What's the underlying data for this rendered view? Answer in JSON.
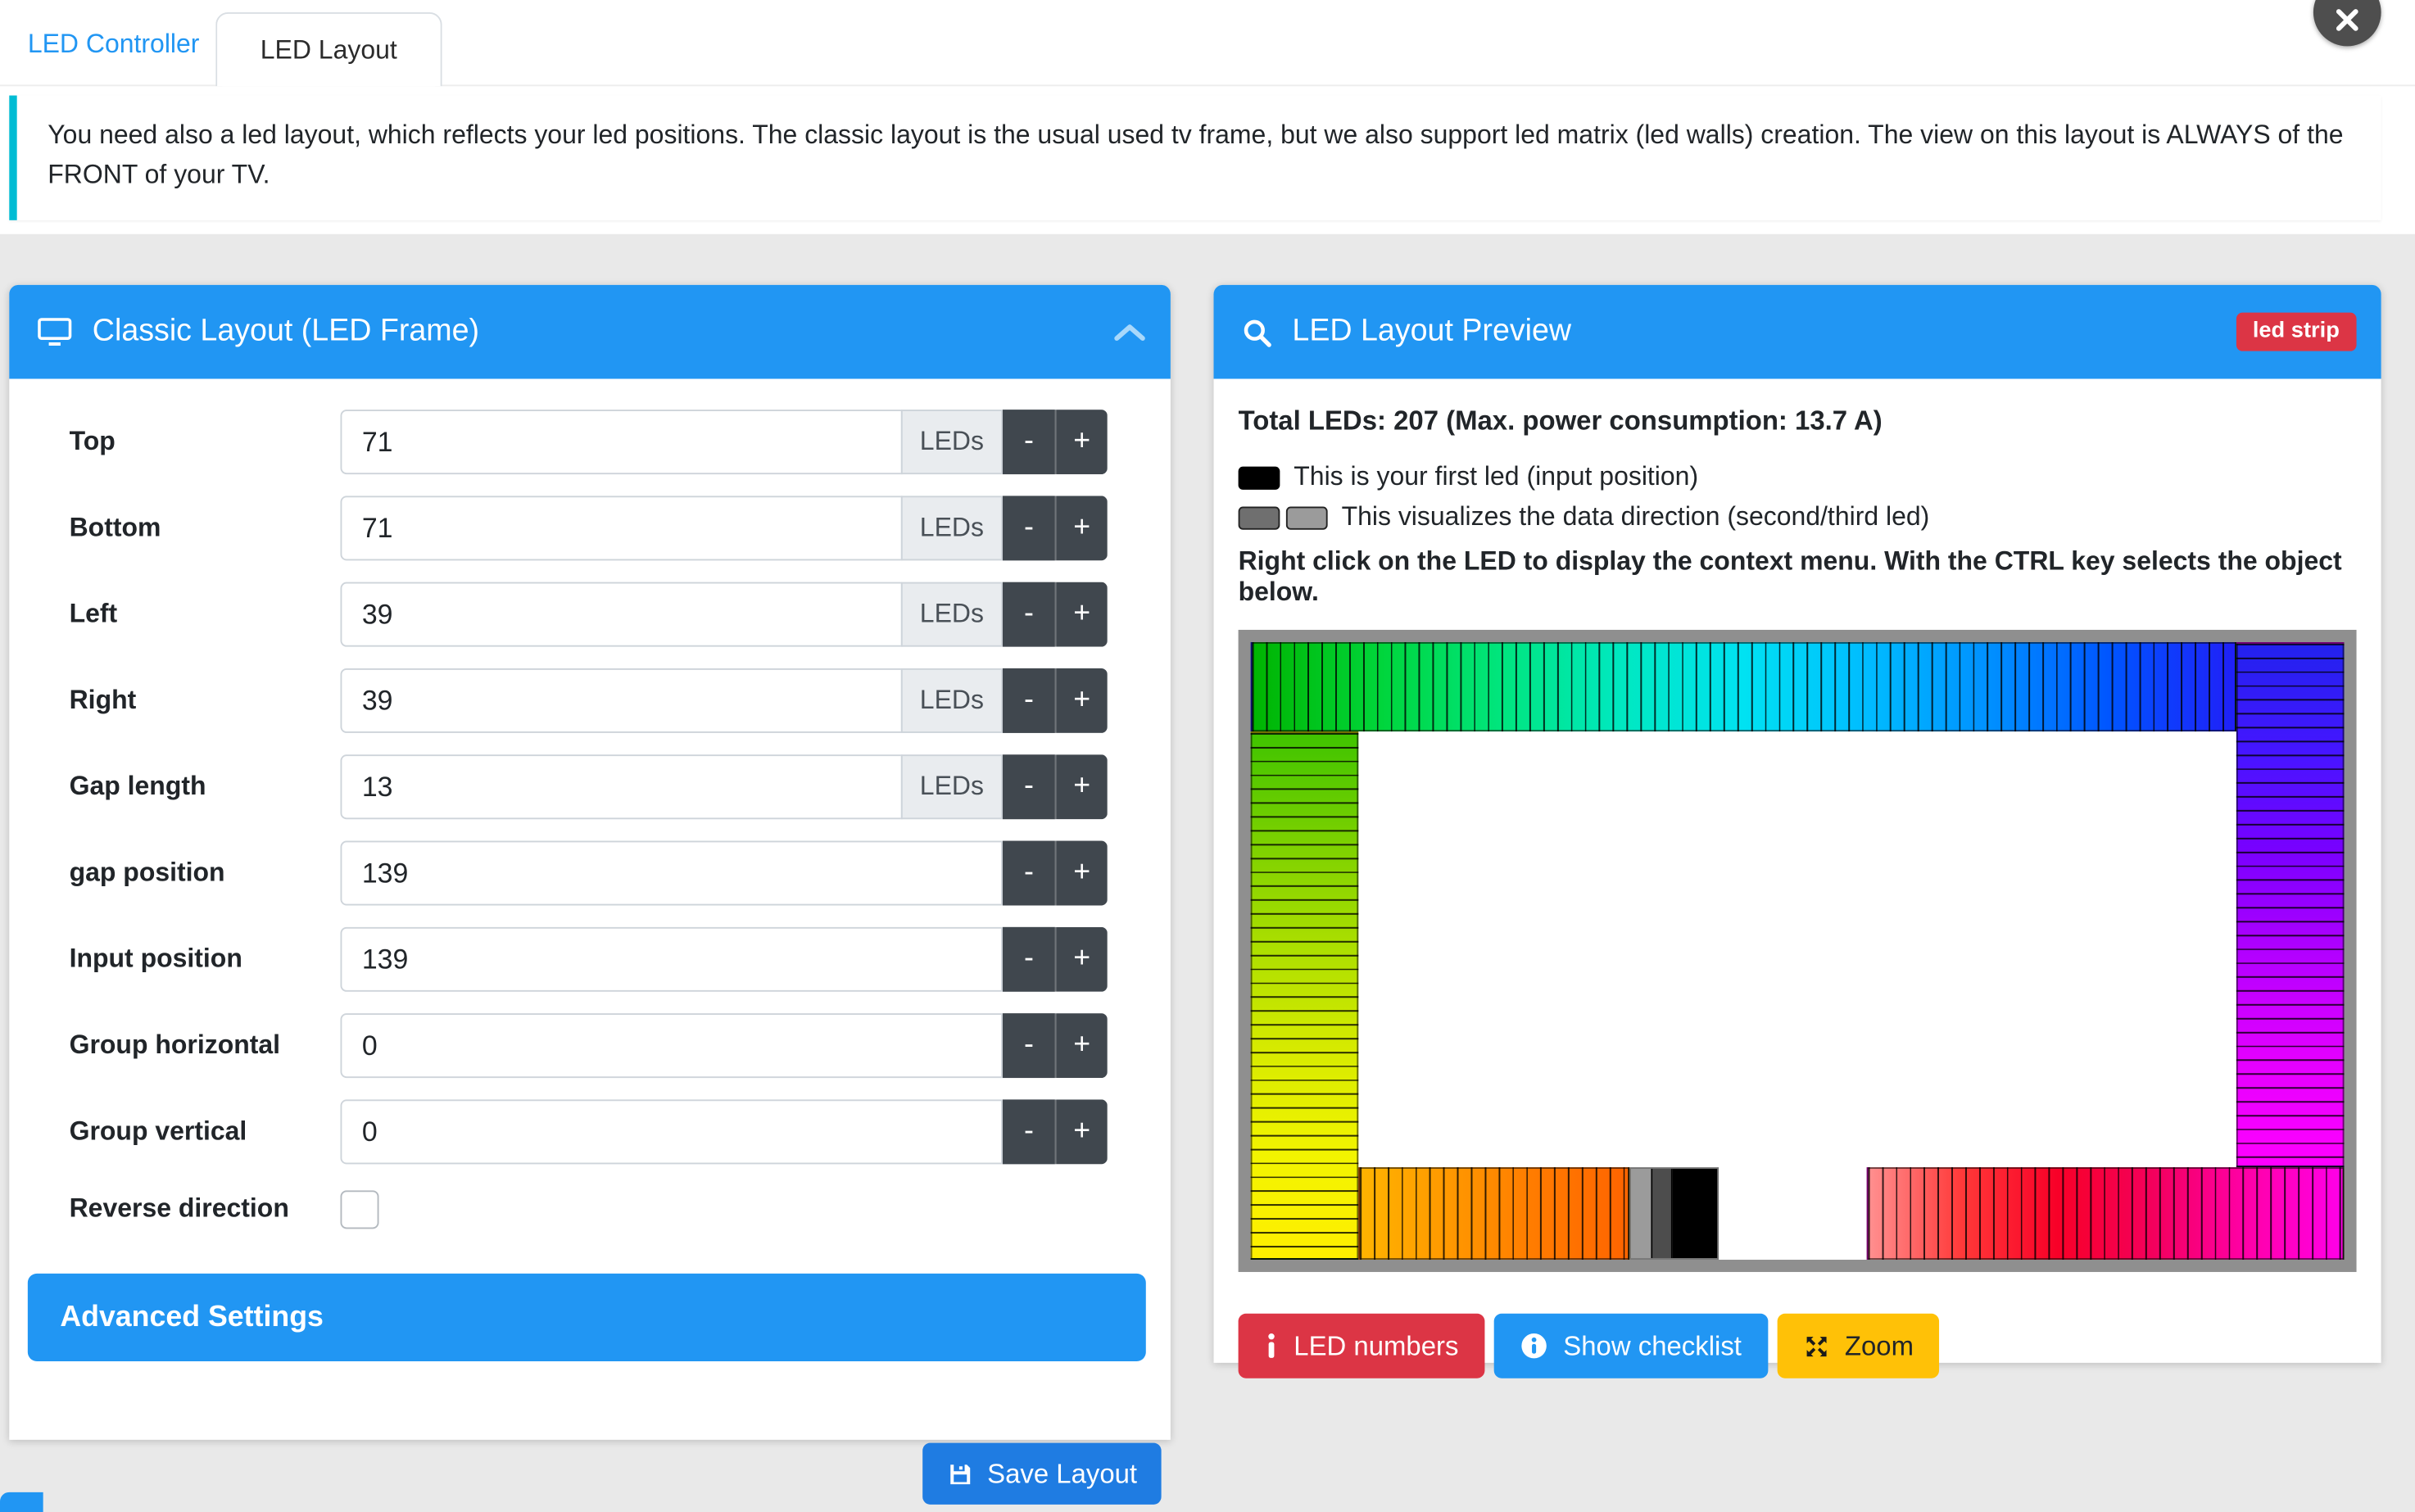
{
  "tabs": [
    {
      "label": "LED Controller"
    },
    {
      "label": "LED Layout"
    }
  ],
  "info_text": "You need also a led layout, which reflects your led positions. The classic layout is the usual used tv frame, but we also support led matrix (led walls) creation. The view on this layout is ALWAYS of the FRONT of your TV.",
  "classic_panel": {
    "title": "Classic Layout (LED Frame)",
    "rows": [
      {
        "label": "Top",
        "value": "71",
        "addon": "LEDs"
      },
      {
        "label": "Bottom",
        "value": "71",
        "addon": "LEDs"
      },
      {
        "label": "Left",
        "value": "39",
        "addon": "LEDs"
      },
      {
        "label": "Right",
        "value": "39",
        "addon": "LEDs"
      },
      {
        "label": "Gap length",
        "value": "13",
        "addon": "LEDs"
      },
      {
        "label": "gap position",
        "value": "139",
        "addon": ""
      },
      {
        "label": "Input position",
        "value": "139",
        "addon": ""
      },
      {
        "label": "Group horizontal",
        "value": "0",
        "addon": ""
      },
      {
        "label": "Group vertical",
        "value": "0",
        "addon": ""
      }
    ],
    "minus_label": "-",
    "plus_label": "+",
    "reverse_label": "Reverse direction",
    "advanced_settings_label": "Advanced Settings",
    "save_button_label": "Save Layout"
  },
  "preview_panel": {
    "title": "LED Layout Preview",
    "badge": "led strip",
    "total_line": "Total LEDs: 207 (Max. power consumption: 13.7 A)",
    "legend_first": "This is your first led (input position)",
    "legend_direction": "This visualizes the data direction (second/third led)",
    "hint": "Right click on the LED to display the context menu. With the CTRL key selects the object below.",
    "buttons": {
      "numbers": "LED numbers",
      "checklist": "Show checklist",
      "zoom": "Zoom"
    },
    "legend_colors": {
      "first": "#000000",
      "second": "#6f6f6f",
      "third": "#9b9b9b"
    },
    "strips": {
      "top": [
        "#00b400",
        "#00d438",
        "#00e57c",
        "#00e8c0",
        "#00e2f2",
        "#00bcff",
        "#0090ff",
        "#0054ff",
        "#2020f8"
      ],
      "right": [
        "#2222ee",
        "#4416ff",
        "#7a00ff",
        "#b400ff",
        "#e400ff",
        "#ff00ff"
      ],
      "left": [
        "#3fc400",
        "#7ad000",
        "#aade00",
        "#d6ea00",
        "#f2f400",
        "#ffef00"
      ],
      "bottom_left": [
        "#ffb400",
        "#ff9800",
        "#ff7a00",
        "#ff6400"
      ],
      "dark_cells": [
        "#9b9b9b",
        "#4d4d4d",
        "#000000"
      ],
      "dark_cell_widths": [
        14,
        14,
        30
      ],
      "bottom_right": [
        "#ff9090",
        "#ff3838",
        "#f80028",
        "#f3005c",
        "#ff00a8",
        "#ff00e8"
      ]
    }
  },
  "colors": {
    "primary_blue": "#2196f3",
    "save_blue": "#1f7ce2",
    "danger_red": "#dc3545",
    "warning_yellow": "#ffc107",
    "step_button_dark": "#40474e",
    "info_border_teal": "#00bcd4",
    "frame_border_gray": "#8f8f8f",
    "page_background": "#e9e9e9"
  }
}
